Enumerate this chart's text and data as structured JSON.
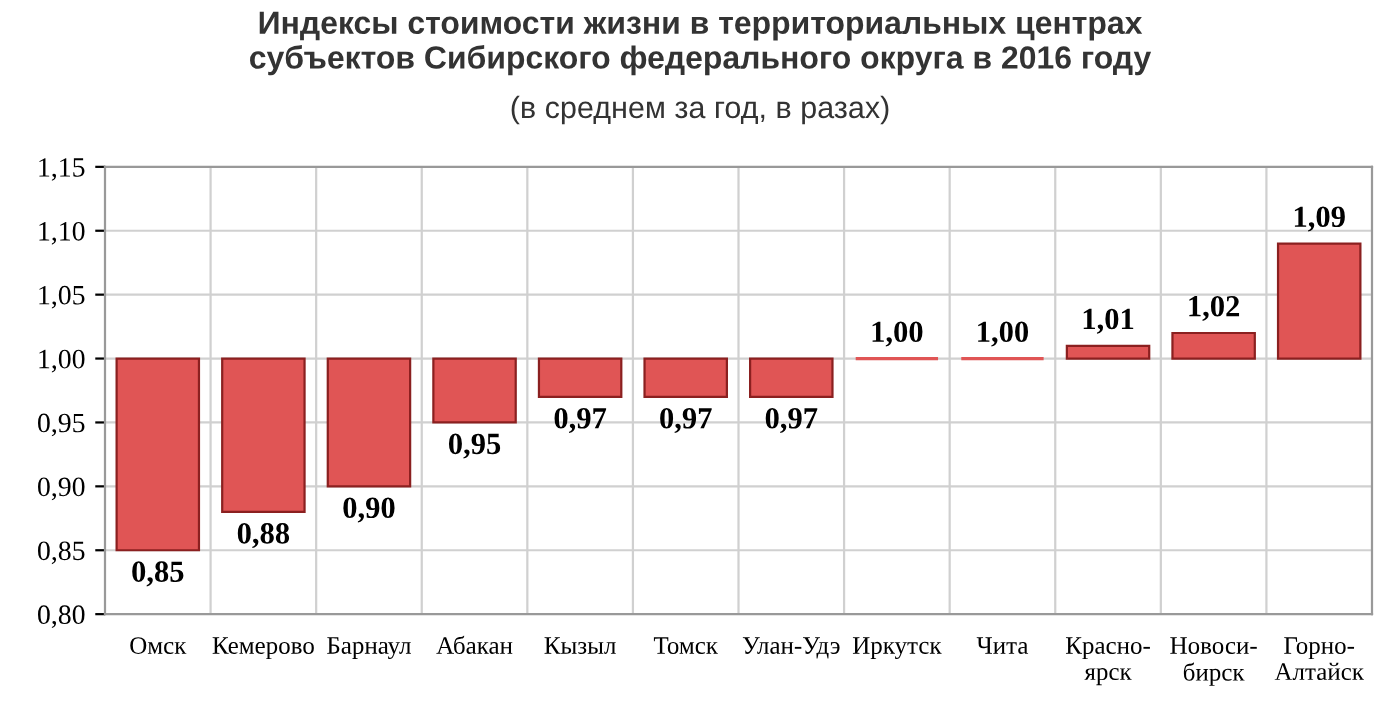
{
  "chart_data": {
    "type": "bar",
    "title": "Индексы стоимости жизни в территориальных центрах\nсубъектов Сибирского федерального округа в 2016 году",
    "subtitle": "(в среднем за год, в разах)",
    "categories": [
      "Омск",
      "Кемерово",
      "Барнаул",
      "Абакан",
      "Кызыл",
      "Томск",
      "Улан-Удэ",
      "Иркутск",
      "Чита",
      "Красно-\nярск",
      "Новоси-\nбирск",
      "Горно-\nАлтайск"
    ],
    "base": [
      1.0,
      1.0,
      1.0,
      1.0,
      1.0,
      1.0,
      1.0,
      1.0,
      1.0,
      1.0,
      1.0,
      1.0
    ],
    "values": [
      -0.15,
      -0.12,
      -0.1,
      -0.05,
      -0.03,
      -0.03,
      -0.03,
      0,
      0,
      0.01,
      0.02,
      0.09
    ],
    "value_labels": [
      "0,85",
      "0,88",
      "0,90",
      "0,95",
      "0,97",
      "0,97",
      "0,97",
      "1,00",
      "1,00",
      "1,01",
      "1,02",
      "1,09"
    ],
    "color": "#e05555",
    "ylim": [
      0.8,
      1.15
    ],
    "yticks": [
      {
        "value": 0.8,
        "label": "0,80"
      },
      {
        "value": 0.85,
        "label": "0,85"
      },
      {
        "value": 0.9,
        "label": "0,90"
      },
      {
        "value": 0.95,
        "label": "0,95"
      },
      {
        "value": 1.0,
        "label": "1,00"
      },
      {
        "value": 1.05,
        "label": "1,05"
      },
      {
        "value": 1.1,
        "label": "1,10"
      },
      {
        "value": 1.15,
        "label": "1,15"
      }
    ],
    "grid": true
  }
}
